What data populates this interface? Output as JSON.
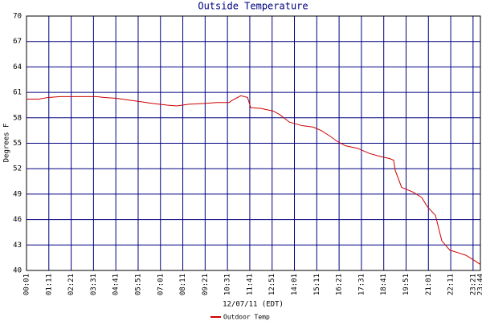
{
  "chart_data": {
    "type": "line",
    "title": "Outside Temperature",
    "xlabel": "12/07/11 (EDT)",
    "ylabel": "Degrees F",
    "x": [
      1,
      39,
      69,
      107,
      145,
      220,
      245,
      283,
      321,
      359,
      396,
      442,
      472,
      510,
      560,
      598,
      636,
      643,
      673,
      694,
      704,
      736,
      774,
      794,
      825,
      862,
      900,
      925,
      950,
      976,
      1001,
      1039,
      1076,
      1114,
      1139,
      1152,
      1157,
      1177,
      1215,
      1240,
      1258,
      1283,
      1303,
      1328,
      1353,
      1378,
      1404,
      1424
    ],
    "series": [
      {
        "name": "Outdoor Temp",
        "color": "#cc0000",
        "values": [
          60.2,
          60.2,
          60.4,
          60.5,
          60.5,
          60.5,
          60.4,
          60.3,
          60.1,
          59.9,
          59.7,
          59.5,
          59.4,
          59.6,
          59.7,
          59.8,
          59.8,
          60.0,
          60.6,
          60.4,
          59.2,
          59.1,
          58.8,
          58.4,
          57.5,
          57.1,
          56.9,
          56.5,
          55.9,
          55.2,
          54.7,
          54.4,
          53.8,
          53.4,
          53.2,
          53.0,
          51.8,
          49.8,
          49.2,
          48.6,
          47.5,
          46.5,
          43.5,
          42.4,
          42.1,
          41.8,
          41.2,
          40.7
        ]
      }
    ],
    "xlim": [
      1,
      1424
    ],
    "xticks": [
      {
        "value": 1,
        "label": "00:01"
      },
      {
        "value": 71,
        "label": "01:11"
      },
      {
        "value": 141,
        "label": "02:21"
      },
      {
        "value": 211,
        "label": "03:31"
      },
      {
        "value": 281,
        "label": "04:41"
      },
      {
        "value": 351,
        "label": "05:51"
      },
      {
        "value": 421,
        "label": "07:01"
      },
      {
        "value": 491,
        "label": "08:11"
      },
      {
        "value": 561,
        "label": "09:21"
      },
      {
        "value": 631,
        "label": "10:31"
      },
      {
        "value": 701,
        "label": "11:41"
      },
      {
        "value": 771,
        "label": "12:51"
      },
      {
        "value": 841,
        "label": "14:01"
      },
      {
        "value": 911,
        "label": "15:11"
      },
      {
        "value": 981,
        "label": "16:21"
      },
      {
        "value": 1051,
        "label": "17:31"
      },
      {
        "value": 1121,
        "label": "18:41"
      },
      {
        "value": 1191,
        "label": "19:51"
      },
      {
        "value": 1261,
        "label": "21:01"
      },
      {
        "value": 1331,
        "label": "22:11"
      },
      {
        "value": 1401,
        "label": "23:21"
      },
      {
        "value": 1424,
        "label": "23:44"
      }
    ],
    "ylim": [
      40,
      70
    ],
    "yticks": [
      40,
      43,
      46,
      49,
      52,
      55,
      58,
      61,
      64,
      67,
      70
    ],
    "grid": true
  }
}
